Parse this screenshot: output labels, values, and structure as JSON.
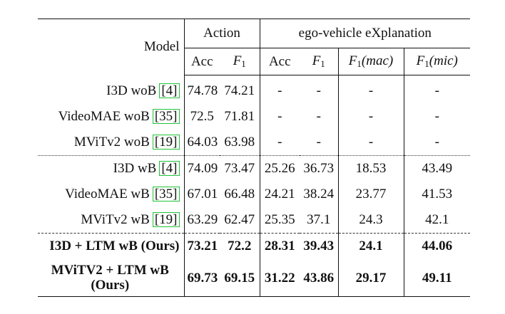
{
  "table": {
    "header": {
      "model": "Model",
      "group_action": "Action",
      "group_exp": "ego-vehicle eXplanation",
      "acc": "Acc",
      "f1_letter": "F",
      "f1_sub": "1",
      "mac": "(mac)",
      "mic": "(mic)"
    },
    "rows": [
      {
        "model": "I3D woB",
        "cite": "[4]",
        "a_acc": "74.78",
        "a_f1": "74.21",
        "e_acc": "-",
        "e_f1": "-",
        "mac": "-",
        "mic": "-"
      },
      {
        "model": "VideoMAE woB",
        "cite": "[35]",
        "a_acc": "72.5",
        "a_f1": "71.81",
        "e_acc": "-",
        "e_f1": "-",
        "mac": "-",
        "mic": "-"
      },
      {
        "model": "MViTv2 woB",
        "cite": "[19]",
        "a_acc": "64.03",
        "a_f1": "63.98",
        "e_acc": "-",
        "e_f1": "-",
        "mac": "-",
        "mic": "-"
      },
      {
        "model": "I3D wB",
        "cite": "[4]",
        "a_acc": "74.09",
        "a_f1": "73.47",
        "e_acc": "25.26",
        "e_f1": "36.73",
        "mac": "18.53",
        "mic": "43.49"
      },
      {
        "model": "VideoMAE wB",
        "cite": "[35]",
        "a_acc": "67.01",
        "a_f1": "66.48",
        "e_acc": "24.21",
        "e_f1": "38.24",
        "mac": "23.77",
        "mic": "41.53"
      },
      {
        "model": "MViTv2 wB",
        "cite": "[19]",
        "a_acc": "63.29",
        "a_f1": "62.47",
        "e_acc": "25.35",
        "e_f1": "37.1",
        "mac": "24.3",
        "mic": "42.1"
      },
      {
        "model": "I3D + LTM wB (Ours)",
        "a_acc": "73.21",
        "a_f1": "72.2",
        "e_acc": "28.31",
        "e_f1": "39.43",
        "mac": "24.1",
        "mic": "44.06"
      },
      {
        "model_line1": "MViTV2 + LTM wB",
        "model_line2": "(Ours)",
        "a_acc": "69.73",
        "a_f1": "69.15",
        "e_acc": "31.22",
        "e_f1": "43.86",
        "mac": "29.17",
        "mic": "49.11"
      }
    ]
  }
}
